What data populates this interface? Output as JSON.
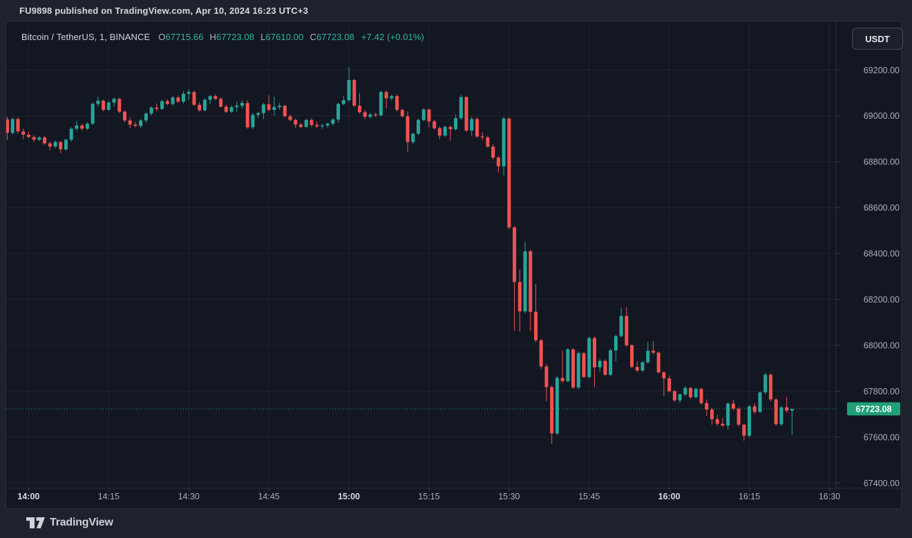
{
  "attribution": "FU9898 published on TradingView.com, Apr 10, 2024 16:23 UTC+3",
  "currency_button": "USDT",
  "legend": {
    "title": "Bitcoin / TetherUS, 1, BINANCE",
    "ohlc": [
      {
        "label": "O",
        "value": "67715.66"
      },
      {
        "label": "H",
        "value": "67723.08"
      },
      {
        "label": "L",
        "value": "67610.00"
      },
      {
        "label": "C",
        "value": "67723.08"
      }
    ],
    "change": "+7.42 (+0.01%)"
  },
  "price_badge": "67723.08",
  "logo": {
    "text": "TradingView"
  },
  "colors": {
    "up": "#26a69a",
    "down": "#ef5350",
    "badge_bg": "#22a079",
    "price_line": "#26a69a",
    "axis_text": "#a9afbb",
    "axis_text_bold": "#d7dae0",
    "grid": "#1e2330",
    "axis_border": "#2a2e39"
  },
  "chart_data": {
    "type": "candlestick",
    "title": "Bitcoin / TetherUS, 1, BINANCE",
    "exchange": "BINANCE",
    "interval": "1",
    "price_line": 67723.08,
    "y_axis": {
      "labels": [
        "69200.00",
        "69000.00",
        "68800.00",
        "68600.00",
        "68400.00",
        "68200.00",
        "68000.00",
        "67800.00",
        "67600.00",
        "67400.00"
      ],
      "min": 67330,
      "max": 69310
    },
    "x_axis": {
      "labels": [
        "14:00",
        "14:15",
        "14:30",
        "14:45",
        "15:00",
        "15:15",
        "15:30",
        "15:45",
        "16:00",
        "16:15",
        "16:30"
      ],
      "bold_labels": [
        "14:00",
        "15:00",
        "16:00"
      ]
    },
    "candles": [
      [
        "13:56",
        68985,
        68996,
        68895,
        68926
      ],
      [
        "13:57",
        68926,
        68992,
        68918,
        68986
      ],
      [
        "13:58",
        68986,
        68994,
        68922,
        68932
      ],
      [
        "13:59",
        68932,
        68944,
        68898,
        68918
      ],
      [
        "14:00",
        68918,
        68930,
        68902,
        68908
      ],
      [
        "14:01",
        68908,
        68916,
        68886,
        68896
      ],
      [
        "14:02",
        68896,
        68912,
        68890,
        68906
      ],
      [
        "14:03",
        68906,
        68912,
        68874,
        68880
      ],
      [
        "14:04",
        68880,
        68888,
        68850,
        68866
      ],
      [
        "14:05",
        68866,
        68894,
        68858,
        68886
      ],
      [
        "14:06",
        68886,
        68890,
        68836,
        68854
      ],
      [
        "14:07",
        68854,
        68900,
        68848,
        68896
      ],
      [
        "14:08",
        68896,
        68950,
        68888,
        68944
      ],
      [
        "14:09",
        68944,
        68978,
        68934,
        68958
      ],
      [
        "14:10",
        68958,
        68966,
        68936,
        68944
      ],
      [
        "14:11",
        68944,
        68972,
        68938,
        68966
      ],
      [
        "14:12",
        68966,
        69058,
        68960,
        69052
      ],
      [
        "14:13",
        69052,
        69084,
        69040,
        69066
      ],
      [
        "14:14",
        69066,
        69070,
        69020,
        69026
      ],
      [
        "14:15",
        69026,
        69064,
        69022,
        69058
      ],
      [
        "14:16",
        69058,
        69080,
        69040,
        69074
      ],
      [
        "14:17",
        69074,
        69078,
        69012,
        69018
      ],
      [
        "14:18",
        69018,
        69024,
        68972,
        68980
      ],
      [
        "14:19",
        68980,
        68994,
        68946,
        68962
      ],
      [
        "14:20",
        68962,
        68974,
        68950,
        68956
      ],
      [
        "14:21",
        68956,
        68986,
        68948,
        68980
      ],
      [
        "14:22",
        68980,
        69016,
        68970,
        69010
      ],
      [
        "14:23",
        69010,
        69042,
        69002,
        69036
      ],
      [
        "14:24",
        69036,
        69054,
        69020,
        69030
      ],
      [
        "14:25",
        69030,
        69070,
        69026,
        69064
      ],
      [
        "14:26",
        69064,
        69072,
        69046,
        69052
      ],
      [
        "14:27",
        69052,
        69086,
        69044,
        69080
      ],
      [
        "14:28",
        69080,
        69088,
        69056,
        69062
      ],
      [
        "14:29",
        69062,
        69108,
        69054,
        69096
      ],
      [
        "14:30",
        69096,
        69116,
        69070,
        69104
      ],
      [
        "14:31",
        69104,
        69110,
        69042,
        69048
      ],
      [
        "14:32",
        69048,
        69060,
        69018,
        69024
      ],
      [
        "14:33",
        69024,
        69076,
        69020,
        69070
      ],
      [
        "14:34",
        69070,
        69092,
        69052,
        69086
      ],
      [
        "14:35",
        69086,
        69094,
        69068,
        69074
      ],
      [
        "14:36",
        69074,
        69082,
        69036,
        69040
      ],
      [
        "14:37",
        69040,
        69048,
        69012,
        69018
      ],
      [
        "14:38",
        69018,
        69046,
        69012,
        69038
      ],
      [
        "14:39",
        69038,
        69062,
        69016,
        69044
      ],
      [
        "14:40",
        69044,
        69068,
        69032,
        69056
      ],
      [
        "14:41",
        69056,
        69068,
        68944,
        68950
      ],
      [
        "14:42",
        68950,
        69012,
        68942,
        69004
      ],
      [
        "14:43",
        69004,
        69018,
        68990,
        69012
      ],
      [
        "14:44",
        69012,
        69056,
        68986,
        69050
      ],
      [
        "14:45",
        69050,
        69090,
        69020,
        69026
      ],
      [
        "14:46",
        69026,
        69084,
        69000,
        69038
      ],
      [
        "14:47",
        69038,
        69056,
        69026,
        69044
      ],
      [
        "14:48",
        69044,
        69048,
        68994,
        68998
      ],
      [
        "14:49",
        68998,
        69006,
        68976,
        68982
      ],
      [
        "14:50",
        68982,
        68988,
        68948,
        68962
      ],
      [
        "14:51",
        68962,
        68970,
        68946,
        68952
      ],
      [
        "14:52",
        68952,
        68988,
        68946,
        68982
      ],
      [
        "14:53",
        68982,
        68990,
        68952,
        68960
      ],
      [
        "14:54",
        68960,
        68976,
        68946,
        68954
      ],
      [
        "14:55",
        68954,
        68966,
        68944,
        68958
      ],
      [
        "14:56",
        68958,
        68970,
        68948,
        68966
      ],
      [
        "14:57",
        68966,
        68990,
        68956,
        68984
      ],
      [
        "14:58",
        68984,
        69058,
        68970,
        69052
      ],
      [
        "14:59",
        69052,
        69086,
        69046,
        69068
      ],
      [
        "15:00",
        69068,
        69212,
        69060,
        69156
      ],
      [
        "15:01",
        69156,
        69162,
        69038,
        69044
      ],
      [
        "15:02",
        69044,
        69100,
        69010,
        69016
      ],
      [
        "15:03",
        69016,
        69026,
        68986,
        68996
      ],
      [
        "15:04",
        68996,
        69012,
        68988,
        69006
      ],
      [
        "15:05",
        69006,
        69014,
        68994,
        69002
      ],
      [
        "15:06",
        69002,
        69110,
        68998,
        69104
      ],
      [
        "15:07",
        69104,
        69110,
        69032,
        69076
      ],
      [
        "15:08",
        69076,
        69094,
        69066,
        69086
      ],
      [
        "15:09",
        69086,
        69094,
        69020,
        69026
      ],
      [
        "15:10",
        69026,
        69032,
        68994,
        68998
      ],
      [
        "15:11",
        68998,
        69020,
        68844,
        68886
      ],
      [
        "15:12",
        68886,
        68926,
        68878,
        68922
      ],
      [
        "15:13",
        68922,
        68988,
        68916,
        68982
      ],
      [
        "15:14",
        68982,
        69034,
        68976,
        69028
      ],
      [
        "15:15",
        69028,
        69034,
        68950,
        68976
      ],
      [
        "15:16",
        68976,
        68984,
        68940,
        68946
      ],
      [
        "15:17",
        68946,
        68954,
        68898,
        68914
      ],
      [
        "15:18",
        68914,
        68958,
        68908,
        68952
      ],
      [
        "15:19",
        68952,
        68958,
        68892,
        68942
      ],
      [
        "15:20",
        68942,
        69006,
        68936,
        68990
      ],
      [
        "15:21",
        68990,
        69092,
        68982,
        69082
      ],
      [
        "15:22",
        69082,
        69086,
        68930,
        68936
      ],
      [
        "15:23",
        68936,
        68996,
        68914,
        68986
      ],
      [
        "15:24",
        68986,
        68994,
        68904,
        68910
      ],
      [
        "15:25",
        68910,
        68928,
        68894,
        68906
      ],
      [
        "15:26",
        68906,
        68914,
        68860,
        68866
      ],
      [
        "15:27",
        68866,
        68876,
        68810,
        68818
      ],
      [
        "15:28",
        68818,
        68824,
        68754,
        68780
      ],
      [
        "15:29",
        68780,
        68996,
        68740,
        68988
      ],
      [
        "15:30",
        68988,
        68994,
        68506,
        68514
      ],
      [
        "15:31",
        68514,
        68520,
        68064,
        68276
      ],
      [
        "15:32",
        68276,
        68330,
        68060,
        68148
      ],
      [
        "15:33",
        68148,
        68452,
        68140,
        68410
      ],
      [
        "15:34",
        68410,
        68416,
        68062,
        68146
      ],
      [
        "15:35",
        68146,
        68268,
        68014,
        68022
      ],
      [
        "15:36",
        68022,
        68028,
        67898,
        67908
      ],
      [
        "15:37",
        67908,
        67920,
        67756,
        67818
      ],
      [
        "15:38",
        67818,
        67824,
        67570,
        67616
      ],
      [
        "15:39",
        67616,
        67866,
        67608,
        67858
      ],
      [
        "15:40",
        67858,
        67976,
        67836,
        67844
      ],
      [
        "15:41",
        67844,
        67988,
        67838,
        67982
      ],
      [
        "15:42",
        67982,
        67988,
        67810,
        67816
      ],
      [
        "15:43",
        67816,
        67974,
        67808,
        67966
      ],
      [
        "15:44",
        67966,
        67970,
        67856,
        67862
      ],
      [
        "15:45",
        67862,
        68038,
        67854,
        68032
      ],
      [
        "15:46",
        68032,
        68038,
        67818,
        67904
      ],
      [
        "15:47",
        67904,
        67940,
        67886,
        67932
      ],
      [
        "15:48",
        67932,
        67938,
        67866,
        67872
      ],
      [
        "15:49",
        67872,
        67986,
        67864,
        67978
      ],
      [
        "15:50",
        67978,
        68046,
        67930,
        68040
      ],
      [
        "15:51",
        68040,
        68164,
        68034,
        68128
      ],
      [
        "15:52",
        68128,
        68166,
        67994,
        68000
      ],
      [
        "15:53",
        68000,
        68006,
        67900,
        67906
      ],
      [
        "15:54",
        67906,
        67930,
        67884,
        67890
      ],
      [
        "15:55",
        67890,
        67932,
        67884,
        67926
      ],
      [
        "15:56",
        67926,
        68014,
        67920,
        67976
      ],
      [
        "15:57",
        67976,
        68018,
        67960,
        67968
      ],
      [
        "15:58",
        67968,
        67974,
        67876,
        67882
      ],
      [
        "15:59",
        67882,
        67888,
        67778,
        67856
      ],
      [
        "16:00",
        67856,
        67868,
        67794,
        67800
      ],
      [
        "16:01",
        67800,
        67806,
        67754,
        67760
      ],
      [
        "16:02",
        67760,
        67790,
        67750,
        67786
      ],
      [
        "16:03",
        67786,
        67822,
        67778,
        67814
      ],
      [
        "16:04",
        67814,
        67820,
        67766,
        67774
      ],
      [
        "16:05",
        67774,
        67816,
        67768,
        67810
      ],
      [
        "16:06",
        67810,
        67816,
        67742,
        67748
      ],
      [
        "16:07",
        67748,
        67764,
        67692,
        67720
      ],
      [
        "16:08",
        67720,
        67728,
        67654,
        67678
      ],
      [
        "16:09",
        67678,
        67698,
        67648,
        67658
      ],
      [
        "16:10",
        67658,
        67684,
        67644,
        67650
      ],
      [
        "16:11",
        67650,
        67752,
        67632,
        67746
      ],
      [
        "16:12",
        67746,
        67762,
        67716,
        67724
      ],
      [
        "16:13",
        67724,
        67730,
        67646,
        67654
      ],
      [
        "16:14",
        67654,
        67660,
        67584,
        67606
      ],
      [
        "16:15",
        67606,
        67740,
        67598,
        67734
      ],
      [
        "16:16",
        67734,
        67748,
        67700,
        67710
      ],
      [
        "16:17",
        67710,
        67800,
        67704,
        67795
      ],
      [
        "16:18",
        67795,
        67880,
        67788,
        67872
      ],
      [
        "16:19",
        67872,
        67878,
        67756,
        67764
      ],
      [
        "16:20",
        67764,
        67770,
        67648,
        67656
      ],
      [
        "16:21",
        67656,
        67736,
        67648,
        67730
      ],
      [
        "16:22",
        67730,
        67776,
        67706,
        67715.66
      ],
      [
        "16:23",
        67715.66,
        67723.08,
        67610,
        67723.08
      ]
    ]
  }
}
